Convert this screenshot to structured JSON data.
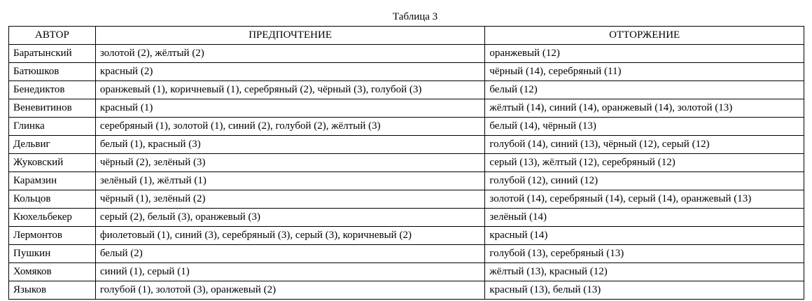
{
  "caption": "Таблица 3",
  "headers": [
    "АВТОР",
    "ПРЕДПОЧТЕНИЕ",
    "ОТТОРЖЕНИЕ"
  ],
  "rows": [
    [
      "Баратынский",
      "золотой (2), жёлтый (2)",
      "оранжевый (12)"
    ],
    [
      "Батюшков",
      "красный (2)",
      "чёрный (14), серебряный (11)"
    ],
    [
      "Бенедиктов",
      "оранжевый (1), коричневый (1), серебряный (2), чёрный (3), голубой (3)",
      "белый (12)"
    ],
    [
      "Веневитинов",
      "красный (1)",
      "жёлтый (14), синий (14), оранжевый (14), золотой (13)"
    ],
    [
      "Глинка",
      "серебряный (1), золотой (1), синий (2), голубой (2), жёлтый (3)",
      "белый (14), чёрный (13)"
    ],
    [
      "Дельвиг",
      "белый (1), красный (3)",
      "голубой (14), синий (13), чёрный (12), серый (12)"
    ],
    [
      "Жуковский",
      "чёрный (2), зелёный (3)",
      "серый (13), жёлтый (12), серебряный (12)"
    ],
    [
      "Карамзин",
      "зелёный (1), жёлтый (1)",
      "голубой (12), синий (12)"
    ],
    [
      "Кольцов",
      "чёрный (1), зелёный (2)",
      "золотой (14), серебряный (14), серый (14), оранжевый (13)"
    ],
    [
      "Кюхельбекер",
      "серый (2), белый (3), оранжевый (3)",
      "зелёный (14)"
    ],
    [
      "Лермонтов",
      "фиолетовый (1), синий (3), серебряный (3), серый (3), коричневый (2)",
      "красный (14)"
    ],
    [
      "Пушкин",
      "белый (2)",
      "голубой (13), серебряный (13)"
    ],
    [
      "Хомяков",
      "синий (1), серый (1)",
      "жёлтый (13), красный (12)"
    ],
    [
      "Языков",
      "голубой (1), золотой (3), оранжевый (2)",
      "красный (13), белый (13)"
    ]
  ]
}
